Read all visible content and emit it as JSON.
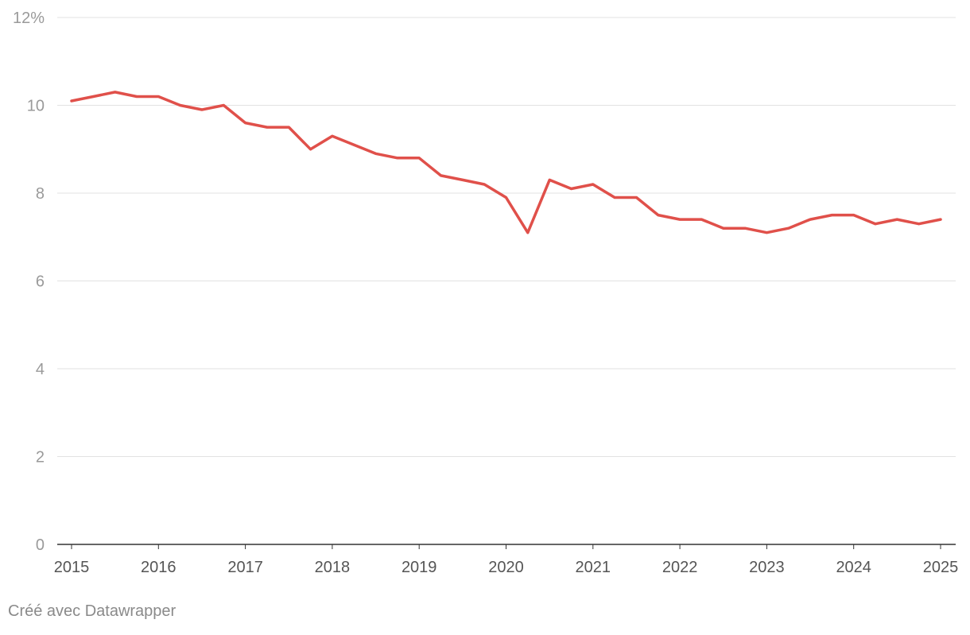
{
  "chart_data": {
    "type": "line",
    "title": "",
    "xlabel": "",
    "ylabel": "",
    "y_unit_suffix": "%",
    "ylim": [
      0,
      12
    ],
    "y_ticks": [
      0,
      2,
      4,
      6,
      8,
      10,
      12
    ],
    "y_tick_labels": [
      "0",
      "2",
      "4",
      "6",
      "8",
      "10",
      "12%"
    ],
    "x_ticks": [
      2015,
      2016,
      2017,
      2018,
      2019,
      2020,
      2021,
      2022,
      2023,
      2024,
      2025
    ],
    "x_tick_labels": [
      "2015",
      "2016",
      "2017",
      "2018",
      "2019",
      "2020",
      "2021",
      "2022",
      "2023",
      "2024",
      "2025"
    ],
    "xlim": [
      2014.875,
      2025.0
    ],
    "grid": "horizontal",
    "legend": "none",
    "series": [
      {
        "color": "#e0504a",
        "x": [
          2015.0,
          2015.25,
          2015.5,
          2015.75,
          2016.0,
          2016.25,
          2016.5,
          2016.75,
          2017.0,
          2017.25,
          2017.5,
          2017.75,
          2018.0,
          2018.25,
          2018.5,
          2018.75,
          2019.0,
          2019.25,
          2019.5,
          2019.75,
          2020.0,
          2020.25,
          2020.5,
          2020.75,
          2021.0,
          2021.25,
          2021.5,
          2021.75,
          2022.0,
          2022.25,
          2022.5,
          2022.75,
          2023.0,
          2023.25,
          2023.5,
          2023.75,
          2024.0,
          2024.25,
          2024.5,
          2024.75,
          2025.0
        ],
        "values": [
          10.1,
          10.2,
          10.3,
          10.2,
          10.2,
          10.0,
          9.9,
          10.0,
          9.6,
          9.5,
          9.5,
          9.0,
          9.3,
          9.1,
          8.9,
          8.8,
          8.8,
          8.4,
          8.3,
          8.2,
          7.9,
          7.1,
          8.3,
          8.1,
          8.2,
          7.9,
          7.9,
          7.5,
          7.4,
          7.4,
          7.2,
          7.2,
          7.1,
          7.2,
          7.4,
          7.5,
          7.5,
          7.3,
          7.4,
          7.3,
          7.4
        ]
      }
    ]
  },
  "footer": {
    "credit": "Créé avec Datawrapper"
  },
  "colors": {
    "line": "#e0504a",
    "grid": "#e2e2e2",
    "axis": "#333333",
    "tick_text": "#9a9a9a",
    "x_tick_text": "#555555"
  }
}
